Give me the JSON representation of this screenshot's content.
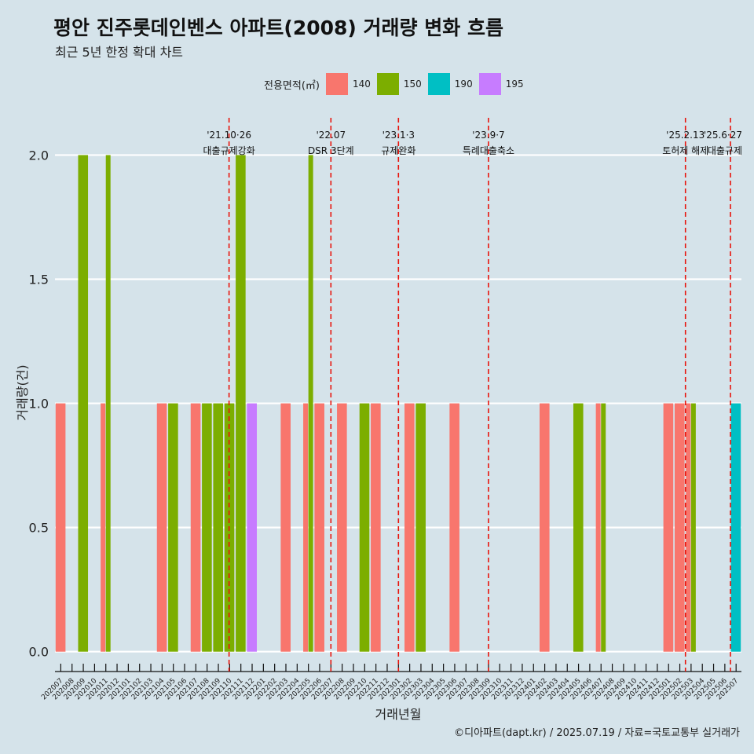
{
  "title": "평안 진주롯데인벤스 아파트(2008) 거래량 변화 흐름",
  "subtitle": "최근 5년 한정 확대 차트",
  "caption": "©디아파트(dapt.kr) / 2025.07.19 / 자료=국토교통부 실거래가",
  "chart_data": {
    "type": "bar",
    "title": "평안 진주롯데인벤스 아파트(2008) 거래량 변화 흐름",
    "subtitle": "최근 5년 한정 확대 차트",
    "xlabel": "거래년월",
    "ylabel": "거래량(건)",
    "ylim": [
      0,
      2.15
    ],
    "yticks": [
      0,
      0.5,
      1,
      1.5,
      2
    ],
    "ytick_labels": [
      "0.0",
      "0.5",
      "1.0",
      "1.5",
      "2.0"
    ],
    "grid": true,
    "legend": {
      "title": "전용면적(㎡)",
      "position": "top"
    },
    "categories": [
      "202007",
      "202008",
      "202009",
      "202010",
      "202011",
      "202012",
      "202101",
      "202102",
      "202103",
      "202104",
      "202105",
      "202106",
      "202107",
      "202108",
      "202109",
      "202110",
      "202111",
      "202112",
      "202201",
      "202202",
      "202203",
      "202204",
      "202205",
      "202206",
      "202207",
      "202208",
      "202209",
      "202210",
      "202211",
      "202212",
      "202301",
      "202302",
      "202303",
      "202304",
      "202305",
      "202306",
      "202307",
      "202308",
      "202309",
      "202310",
      "202311",
      "202312",
      "202401",
      "202402",
      "202403",
      "202404",
      "202405",
      "202406",
      "202407",
      "202408",
      "202409",
      "202410",
      "202411",
      "202412",
      "202501",
      "202502",
      "202503",
      "202504",
      "202505",
      "202506",
      "202507"
    ],
    "series": [
      {
        "name": "140",
        "color": "#F8766D",
        "values": [
          1,
          0,
          0,
          0,
          1,
          0,
          0,
          0,
          0,
          1,
          0,
          0,
          1,
          0,
          0,
          0,
          0,
          0,
          0,
          0,
          1,
          0,
          1,
          1,
          0,
          1,
          0,
          0,
          1,
          0,
          0,
          1,
          0,
          0,
          0,
          1,
          0,
          0,
          0,
          0,
          0,
          0,
          0,
          1,
          0,
          0,
          0,
          0,
          1,
          0,
          0,
          0,
          0,
          0,
          1,
          1,
          1,
          0,
          0,
          0,
          0
        ]
      },
      {
        "name": "150",
        "color": "#7CAE00",
        "values": [
          0,
          0,
          2,
          0,
          2,
          0,
          0,
          0,
          0,
          0,
          1,
          0,
          0,
          1,
          1,
          1,
          2,
          0,
          0,
          0,
          0,
          0,
          2,
          0,
          0,
          0,
          0,
          1,
          0,
          0,
          0,
          0,
          1,
          0,
          0,
          0,
          0,
          0,
          0,
          0,
          0,
          0,
          0,
          0,
          0,
          0,
          1,
          0,
          1,
          0,
          0,
          0,
          0,
          0,
          0,
          0,
          1,
          0,
          0,
          0,
          0
        ]
      },
      {
        "name": "190",
        "color": "#00BFC4",
        "values": [
          0,
          0,
          0,
          0,
          0,
          0,
          0,
          0,
          0,
          0,
          0,
          0,
          0,
          0,
          0,
          0,
          0,
          0,
          0,
          0,
          0,
          0,
          0,
          0,
          0,
          0,
          0,
          0,
          0,
          0,
          0,
          0,
          0,
          0,
          0,
          0,
          0,
          0,
          0,
          0,
          0,
          0,
          0,
          0,
          0,
          0,
          0,
          0,
          0,
          0,
          0,
          0,
          0,
          0,
          0,
          0,
          0,
          0,
          0,
          0,
          1
        ]
      },
      {
        "name": "195",
        "color": "#C77CFF",
        "values": [
          0,
          0,
          0,
          0,
          0,
          0,
          0,
          0,
          0,
          0,
          0,
          0,
          0,
          0,
          0,
          0,
          0,
          1,
          0,
          0,
          0,
          0,
          0,
          0,
          0,
          0,
          0,
          0,
          0,
          0,
          0,
          0,
          0,
          0,
          0,
          0,
          0,
          0,
          0,
          0,
          0,
          0,
          0,
          0,
          0,
          0,
          0,
          0,
          0,
          0,
          0,
          0,
          0,
          0,
          0,
          0,
          0,
          0,
          0,
          0,
          0
        ]
      }
    ],
    "events": [
      {
        "month": "202110",
        "offset": -0.05,
        "date": "'21.10·26",
        "label": "대출규제강화"
      },
      {
        "month": "202207",
        "offset": 0,
        "date": "'22.07",
        "label": "DSR 3단계"
      },
      {
        "month": "202301",
        "offset": 0,
        "date": "'23.1·3",
        "label": "규제완화"
      },
      {
        "month": "202309",
        "offset": 0,
        "date": "'23.9·7",
        "label": "특례대출축소"
      },
      {
        "month": "202502",
        "offset": 0.5,
        "date": "'25.2.13",
        "label": "토허제 해제"
      },
      {
        "month": "202506",
        "offset": 0.5,
        "date": "'25.6·27",
        "label": "대출규제"
      }
    ]
  }
}
